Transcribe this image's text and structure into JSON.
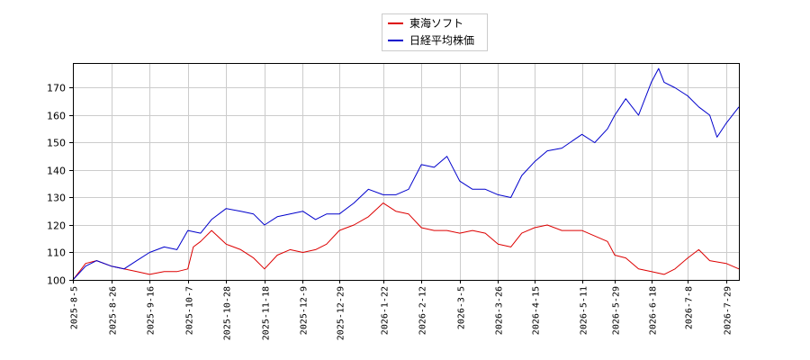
{
  "chart_data": {
    "type": "line",
    "title": "",
    "xlabel": "",
    "ylabel": "",
    "ylim": [
      100,
      179
    ],
    "yticks": [
      100,
      110,
      120,
      130,
      140,
      150,
      160,
      170
    ],
    "xticks": [
      "2025-8-5",
      "2025-8-26",
      "2025-9-16",
      "2025-10-7",
      "2025-10-28",
      "2025-11-18",
      "2025-12-9",
      "2025-12-29",
      "2026-1-22",
      "2026-2-12",
      "2026-3-5",
      "2026-3-26",
      "2026-4-15",
      "2026-5-11",
      "2026-5-29",
      "2026-6-18",
      "2026-7-8",
      "2026-7-29"
    ],
    "grid": true,
    "legend_position": "top-center",
    "series": [
      {
        "name": "東海ソフト",
        "color": "#dd0000",
        "points": [
          [
            "2025-8-5",
            100
          ],
          [
            "2025-8-12",
            106
          ],
          [
            "2025-8-18",
            107
          ],
          [
            "2025-8-26",
            105
          ],
          [
            "2025-9-2",
            104
          ],
          [
            "2025-9-9",
            103
          ],
          [
            "2025-9-16",
            102
          ],
          [
            "2025-9-24",
            103
          ],
          [
            "2025-10-1",
            103
          ],
          [
            "2025-10-7",
            104
          ],
          [
            "2025-10-10",
            112
          ],
          [
            "2025-10-14",
            114
          ],
          [
            "2025-10-20",
            118
          ],
          [
            "2025-10-28",
            113
          ],
          [
            "2025-11-5",
            111
          ],
          [
            "2025-11-12",
            108
          ],
          [
            "2025-11-18",
            104
          ],
          [
            "2025-11-25",
            109
          ],
          [
            "2025-12-2",
            111
          ],
          [
            "2025-12-9",
            110
          ],
          [
            "2025-12-16",
            111
          ],
          [
            "2025-12-22",
            113
          ],
          [
            "2025-12-29",
            118
          ],
          [
            "2026-1-6",
            120
          ],
          [
            "2026-1-14",
            123
          ],
          [
            "2026-1-22",
            128
          ],
          [
            "2026-1-29",
            125
          ],
          [
            "2026-2-5",
            124
          ],
          [
            "2026-2-12",
            119
          ],
          [
            "2026-2-19",
            118
          ],
          [
            "2026-2-26",
            118
          ],
          [
            "2026-3-5",
            117
          ],
          [
            "2026-3-12",
            118
          ],
          [
            "2026-3-19",
            117
          ],
          [
            "2026-3-26",
            113
          ],
          [
            "2026-4-2",
            112
          ],
          [
            "2026-4-8",
            117
          ],
          [
            "2026-4-15",
            119
          ],
          [
            "2026-4-22",
            120
          ],
          [
            "2026-4-30",
            118
          ],
          [
            "2026-5-11",
            118
          ],
          [
            "2026-5-18",
            116
          ],
          [
            "2026-5-25",
            114
          ],
          [
            "2026-5-29",
            109
          ],
          [
            "2026-6-4",
            108
          ],
          [
            "2026-6-11",
            104
          ],
          [
            "2026-6-18",
            103
          ],
          [
            "2026-6-25",
            102
          ],
          [
            "2026-7-1",
            104
          ],
          [
            "2026-7-8",
            108
          ],
          [
            "2026-7-14",
            111
          ],
          [
            "2026-7-20",
            107
          ],
          [
            "2026-7-29",
            106
          ],
          [
            "2026-8-5",
            104
          ]
        ]
      },
      {
        "name": "日経平均株価",
        "color": "#0000cc",
        "points": [
          [
            "2025-8-5",
            100
          ],
          [
            "2025-8-12",
            105
          ],
          [
            "2025-8-18",
            107
          ],
          [
            "2025-8-26",
            105
          ],
          [
            "2025-9-2",
            104
          ],
          [
            "2025-9-9",
            107
          ],
          [
            "2025-9-16",
            110
          ],
          [
            "2025-9-24",
            112
          ],
          [
            "2025-10-1",
            111
          ],
          [
            "2025-10-7",
            118
          ],
          [
            "2025-10-14",
            117
          ],
          [
            "2025-10-20",
            122
          ],
          [
            "2025-10-28",
            126
          ],
          [
            "2025-11-5",
            125
          ],
          [
            "2025-11-12",
            124
          ],
          [
            "2025-11-18",
            120
          ],
          [
            "2025-11-25",
            123
          ],
          [
            "2025-12-2",
            124
          ],
          [
            "2025-12-9",
            125
          ],
          [
            "2025-12-16",
            122
          ],
          [
            "2025-12-22",
            124
          ],
          [
            "2025-12-29",
            124
          ],
          [
            "2026-1-6",
            128
          ],
          [
            "2026-1-14",
            133
          ],
          [
            "2026-1-22",
            131
          ],
          [
            "2026-1-29",
            131
          ],
          [
            "2026-2-5",
            133
          ],
          [
            "2026-2-12",
            142
          ],
          [
            "2026-2-19",
            141
          ],
          [
            "2026-2-26",
            145
          ],
          [
            "2026-3-5",
            136
          ],
          [
            "2026-3-12",
            133
          ],
          [
            "2026-3-19",
            133
          ],
          [
            "2026-3-26",
            131
          ],
          [
            "2026-4-2",
            130
          ],
          [
            "2026-4-8",
            138
          ],
          [
            "2026-4-15",
            143
          ],
          [
            "2026-4-22",
            147
          ],
          [
            "2026-4-30",
            148
          ],
          [
            "2026-5-11",
            153
          ],
          [
            "2026-5-18",
            150
          ],
          [
            "2026-5-25",
            155
          ],
          [
            "2026-5-29",
            160
          ],
          [
            "2026-6-4",
            166
          ],
          [
            "2026-6-11",
            160
          ],
          [
            "2026-6-18",
            172
          ],
          [
            "2026-6-22",
            177
          ],
          [
            "2026-6-25",
            172
          ],
          [
            "2026-7-1",
            170
          ],
          [
            "2026-7-8",
            167
          ],
          [
            "2026-7-14",
            163
          ],
          [
            "2026-7-20",
            160
          ],
          [
            "2026-7-24",
            152
          ],
          [
            "2026-7-29",
            157
          ],
          [
            "2026-8-5",
            163
          ]
        ]
      }
    ]
  }
}
